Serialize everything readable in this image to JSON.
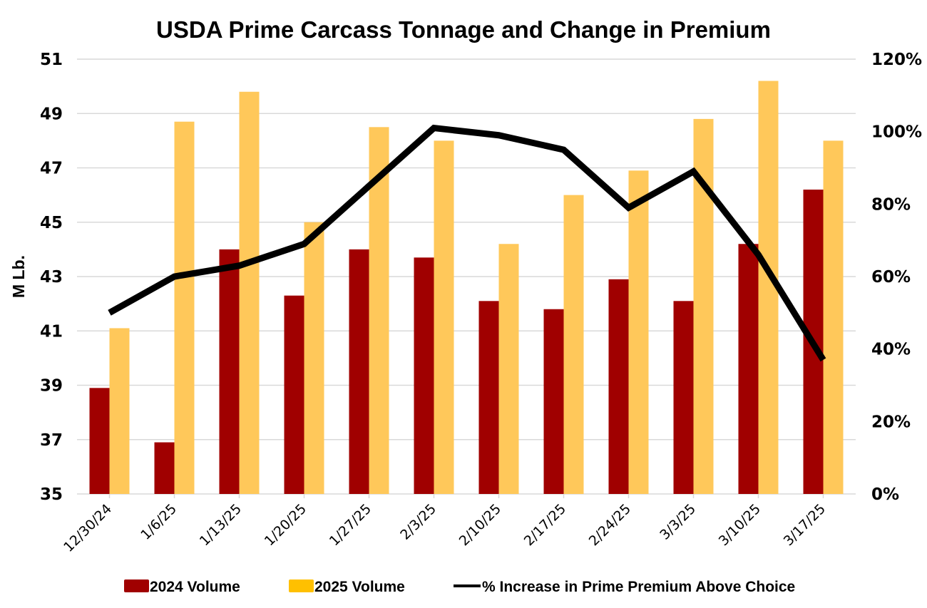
{
  "chart_data": {
    "type": "bar",
    "title": "USDA Prime Carcass Tonnage and Change in Premium",
    "xlabel": "",
    "ylabel": "M Lb.",
    "y2label": "",
    "categories": [
      "12/30/24",
      "1/6/25",
      "1/13/25",
      "1/20/25",
      "1/27/25",
      "2/3/25",
      "2/10/25",
      "2/17/25",
      "2/24/25",
      "3/3/25",
      "3/10/25",
      "3/17/25"
    ],
    "series": [
      {
        "name": "2024 Volume",
        "type": "bar",
        "axis": "left",
        "color": "#a00000",
        "values": [
          38.9,
          36.9,
          44.0,
          42.3,
          44.0,
          43.7,
          42.1,
          41.8,
          42.9,
          42.1,
          44.2,
          46.2
        ]
      },
      {
        "name": "2025 Volume",
        "type": "bar",
        "axis": "left",
        "color": "#ffc85a",
        "legend_color": "#ffc000",
        "values": [
          41.1,
          48.7,
          49.8,
          45.0,
          48.5,
          48.0,
          44.2,
          46.0,
          46.9,
          48.8,
          50.2,
          48.0
        ]
      },
      {
        "name": "% Increase in Prime Premium Above Choice",
        "type": "line",
        "axis": "right",
        "color": "#000000",
        "values": [
          50,
          60,
          63,
          69,
          85,
          101,
          99,
          95,
          79,
          89,
          66,
          37
        ]
      }
    ],
    "ylim": [
      35,
      51
    ],
    "yticks": [
      "35",
      "37",
      "39",
      "41",
      "43",
      "45",
      "47",
      "49",
      "51"
    ],
    "ytick_values": [
      35,
      37,
      39,
      41,
      43,
      45,
      47,
      49,
      51
    ],
    "y2lim": [
      0,
      120
    ],
    "y2ticks": [
      "0%",
      "20%",
      "40%",
      "60%",
      "80%",
      "100%",
      "120%"
    ],
    "y2tick_values": [
      0,
      20,
      40,
      60,
      80,
      100,
      120
    ],
    "grid": true,
    "legend_position": "bottom"
  }
}
